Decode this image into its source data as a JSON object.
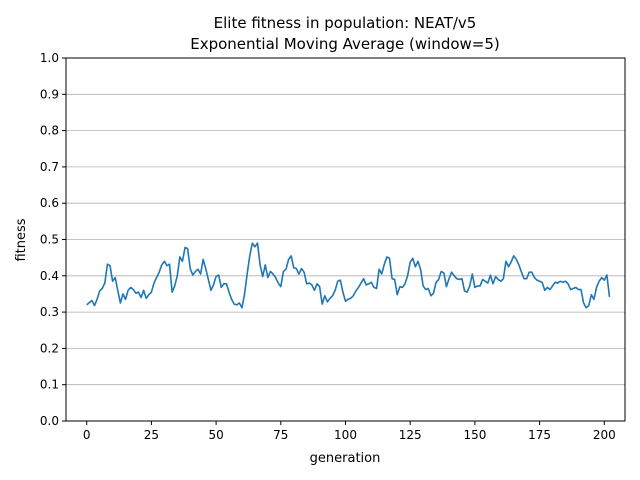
{
  "chart_data": {
    "type": "line",
    "title": "Elite fitness in population: NEAT/v5",
    "subtitle": "Exponential Moving Average (window=5)",
    "xlabel": "generation",
    "ylabel": "fitness",
    "xlim": [
      -8,
      208
    ],
    "ylim": [
      0,
      1
    ],
    "xticks": [
      0,
      25,
      50,
      75,
      100,
      125,
      150,
      175,
      200
    ],
    "xtick_labels": [
      "0",
      "25",
      "50",
      "75",
      "100",
      "125",
      "150",
      "175",
      "200"
    ],
    "yticks": [
      0,
      0.1,
      0.2,
      0.3,
      0.4,
      0.5,
      0.6,
      0.7,
      0.8,
      0.9,
      1.0
    ],
    "ytick_labels": [
      "0.0",
      "0.1",
      "0.2",
      "0.3",
      "0.4",
      "0.5",
      "0.6",
      "0.7",
      "0.8",
      "0.9",
      "1.0"
    ],
    "grid": "horizontal",
    "color": "#1f77b4",
    "series": [
      {
        "values": [
          0.32,
          0.326,
          0.332,
          0.318,
          0.335,
          0.358,
          0.365,
          0.38,
          0.432,
          0.428,
          0.385,
          0.395,
          0.36,
          0.325,
          0.35,
          0.335,
          0.36,
          0.368,
          0.362,
          0.352,
          0.355,
          0.34,
          0.36,
          0.338,
          0.348,
          0.355,
          0.38,
          0.395,
          0.41,
          0.43,
          0.44,
          0.428,
          0.432,
          0.355,
          0.372,
          0.4,
          0.452,
          0.44,
          0.478,
          0.475,
          0.42,
          0.402,
          0.412,
          0.418,
          0.405,
          0.445,
          0.42,
          0.39,
          0.36,
          0.375,
          0.398,
          0.402,
          0.368,
          0.378,
          0.378,
          0.355,
          0.335,
          0.322,
          0.32,
          0.325,
          0.312,
          0.35,
          0.405,
          0.455,
          0.49,
          0.48,
          0.49,
          0.43,
          0.398,
          0.43,
          0.395,
          0.412,
          0.405,
          0.395,
          0.38,
          0.37,
          0.412,
          0.418,
          0.445,
          0.455,
          0.422,
          0.42,
          0.405,
          0.42,
          0.41,
          0.378,
          0.38,
          0.375,
          0.36,
          0.378,
          0.37,
          0.322,
          0.345,
          0.328,
          0.338,
          0.345,
          0.36,
          0.385,
          0.388,
          0.355,
          0.33,
          0.335,
          0.338,
          0.345,
          0.358,
          0.368,
          0.38,
          0.392,
          0.375,
          0.378,
          0.382,
          0.368,
          0.365,
          0.418,
          0.405,
          0.432,
          0.452,
          0.448,
          0.392,
          0.39,
          0.348,
          0.37,
          0.368,
          0.378,
          0.4,
          0.438,
          0.448,
          0.425,
          0.44,
          0.418,
          0.372,
          0.362,
          0.365,
          0.345,
          0.352,
          0.382,
          0.39,
          0.412,
          0.408,
          0.37,
          0.392,
          0.41,
          0.4,
          0.392,
          0.39,
          0.392,
          0.358,
          0.355,
          0.372,
          0.405,
          0.368,
          0.372,
          0.372,
          0.39,
          0.385,
          0.38,
          0.402,
          0.378,
          0.398,
          0.39,
          0.385,
          0.392,
          0.44,
          0.425,
          0.438,
          0.455,
          0.445,
          0.43,
          0.41,
          0.392,
          0.392,
          0.41,
          0.41,
          0.395,
          0.388,
          0.385,
          0.382,
          0.36,
          0.368,
          0.362,
          0.372,
          0.382,
          0.38,
          0.385,
          0.382,
          0.385,
          0.378,
          0.362,
          0.365,
          0.368,
          0.362,
          0.362,
          0.325,
          0.312,
          0.318,
          0.348,
          0.335,
          0.368,
          0.385,
          0.395,
          0.388,
          0.402,
          0.342
        ]
      }
    ]
  }
}
